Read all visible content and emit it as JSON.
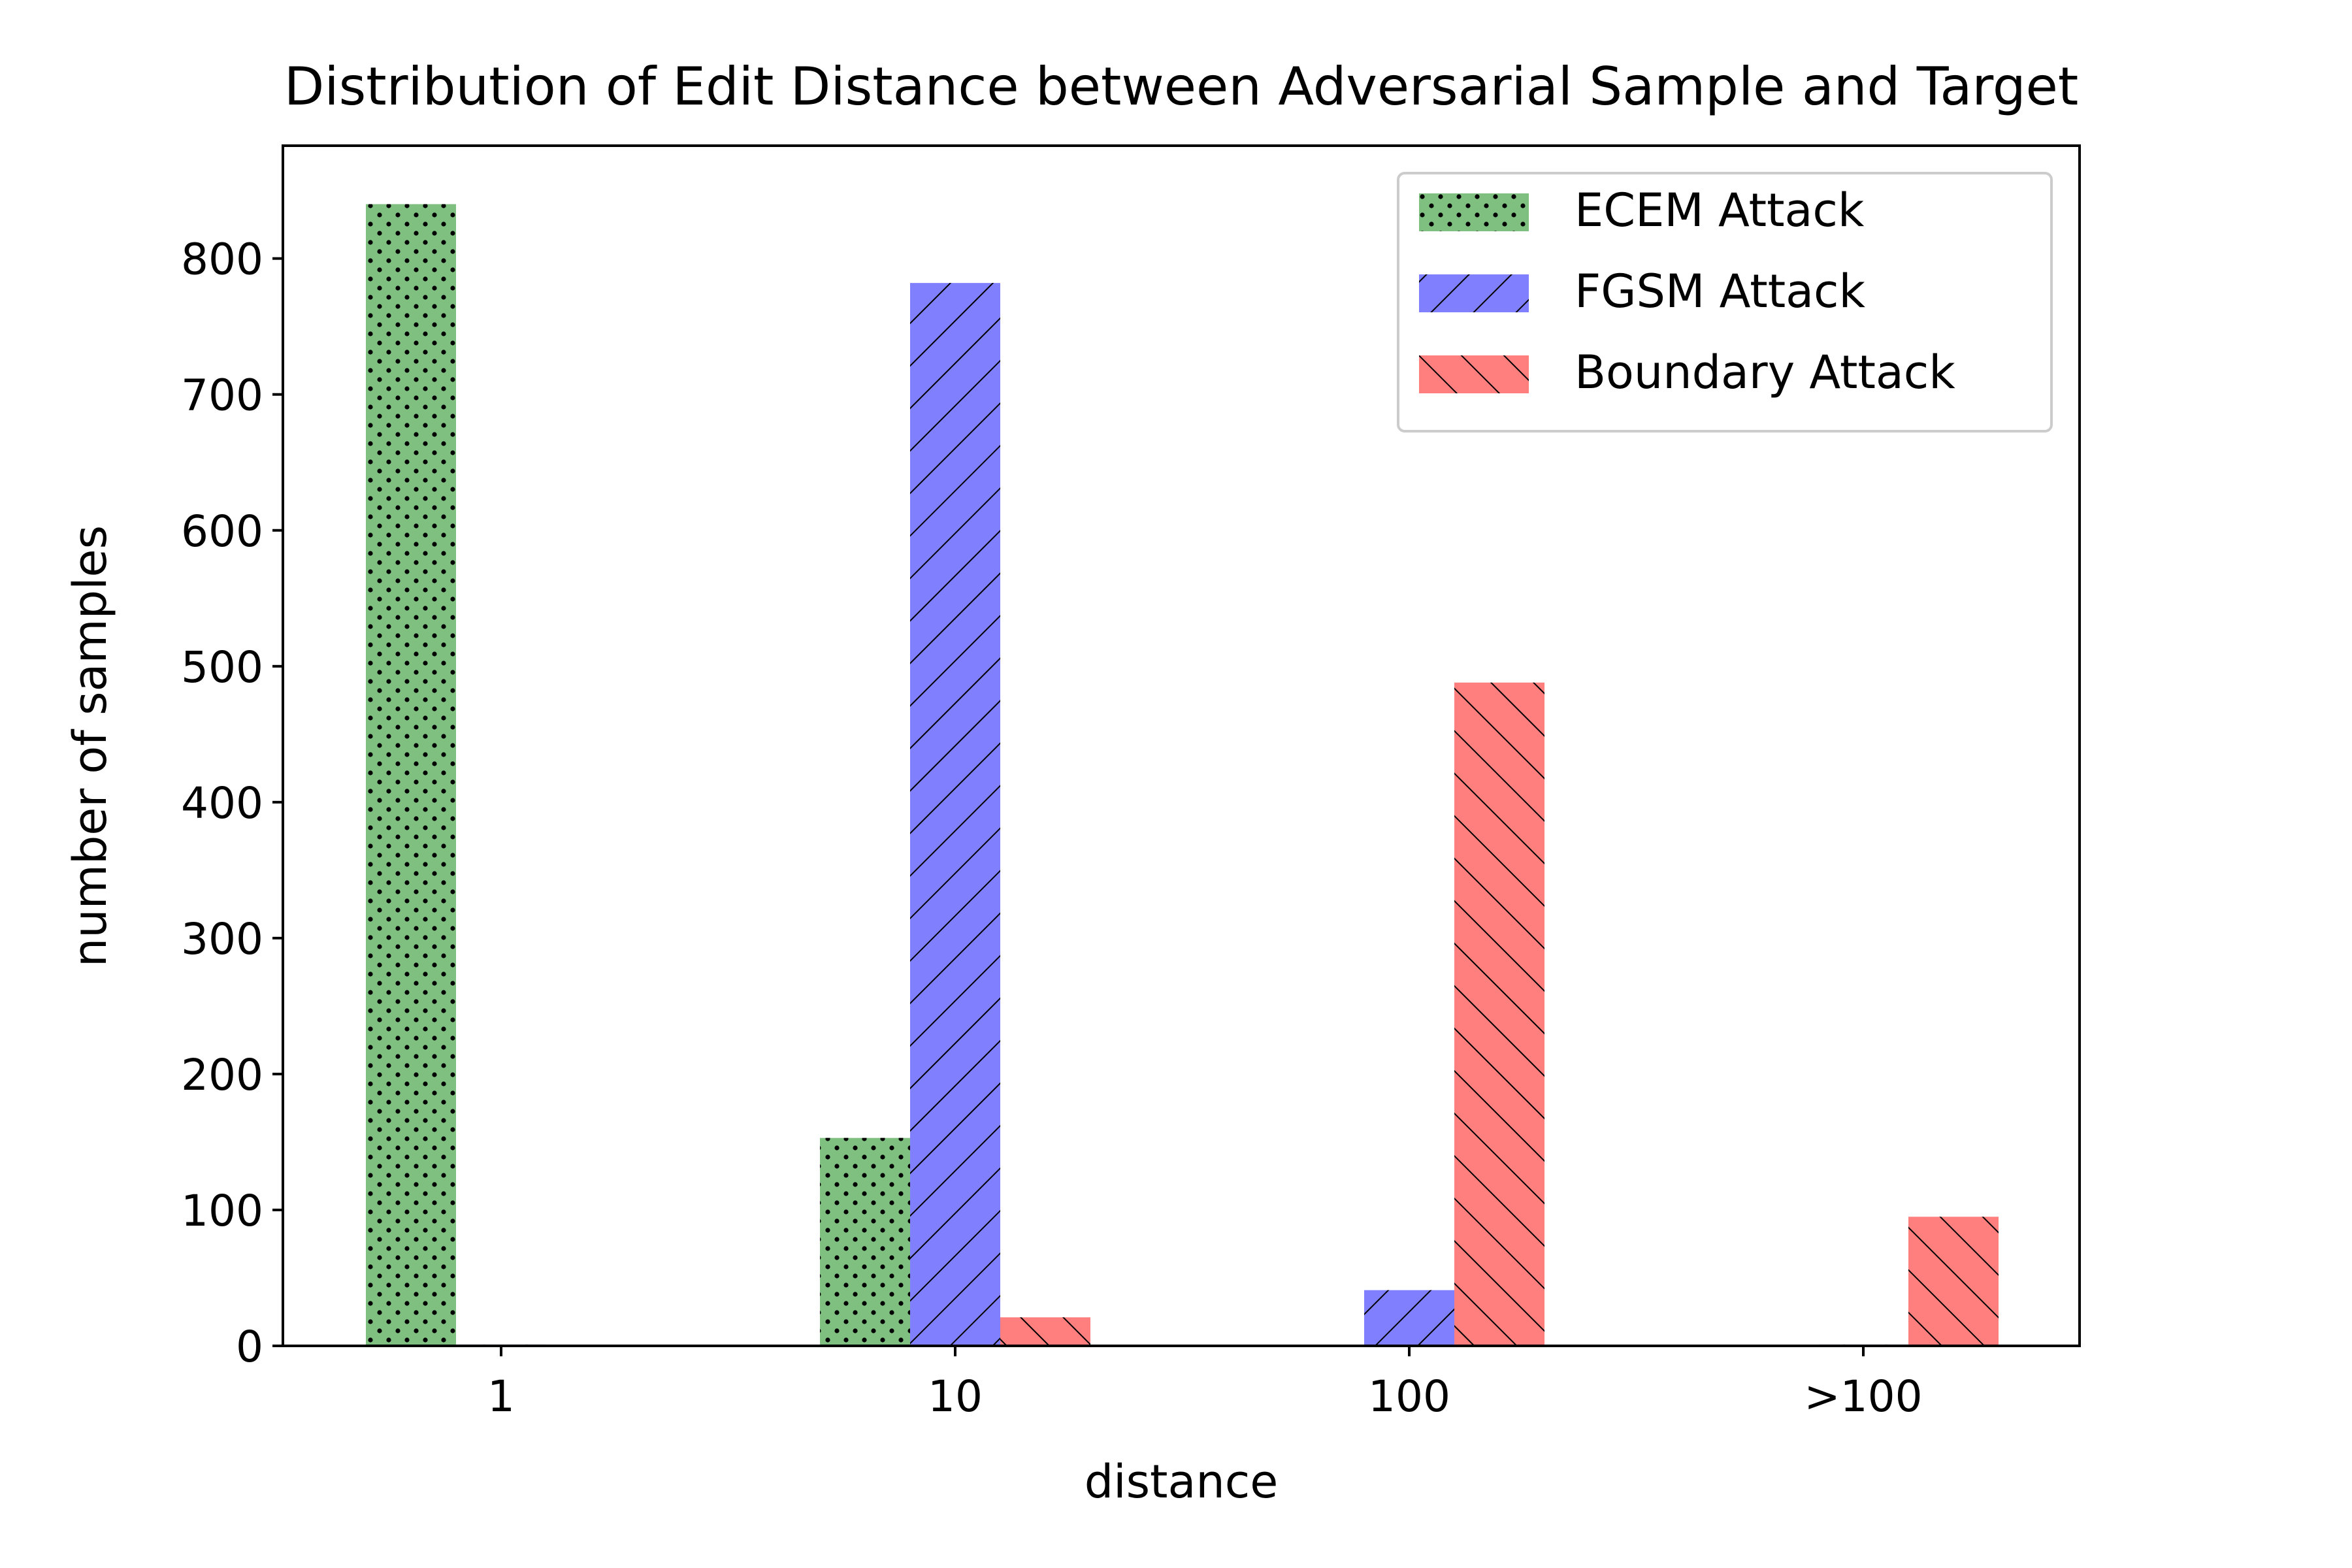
{
  "chart_data": {
    "type": "bar",
    "title": "Distribution of Edit Distance between Adversarial Sample and Target",
    "xlabel": "distance",
    "ylabel": "number of samples",
    "categories": [
      "1",
      "10",
      "100",
      ">100"
    ],
    "ylim": [
      0,
      883
    ],
    "yticks": [
      0,
      100,
      200,
      300,
      400,
      500,
      600,
      700,
      800
    ],
    "grid": false,
    "legend_position": "top-right",
    "series": [
      {
        "name": "ECEM Attack",
        "values": [
          840,
          153,
          0,
          0
        ],
        "color": "#7fbf7f",
        "hatch": "dots"
      },
      {
        "name": "FGSM Attack",
        "values": [
          1,
          782,
          41,
          1
        ],
        "color": "#8080ff",
        "hatch": "forward-diagonal"
      },
      {
        "name": "Boundary Attack",
        "values": [
          0,
          21,
          488,
          95
        ],
        "color": "#ff7f7f",
        "hatch": "back-diagonal"
      }
    ]
  }
}
